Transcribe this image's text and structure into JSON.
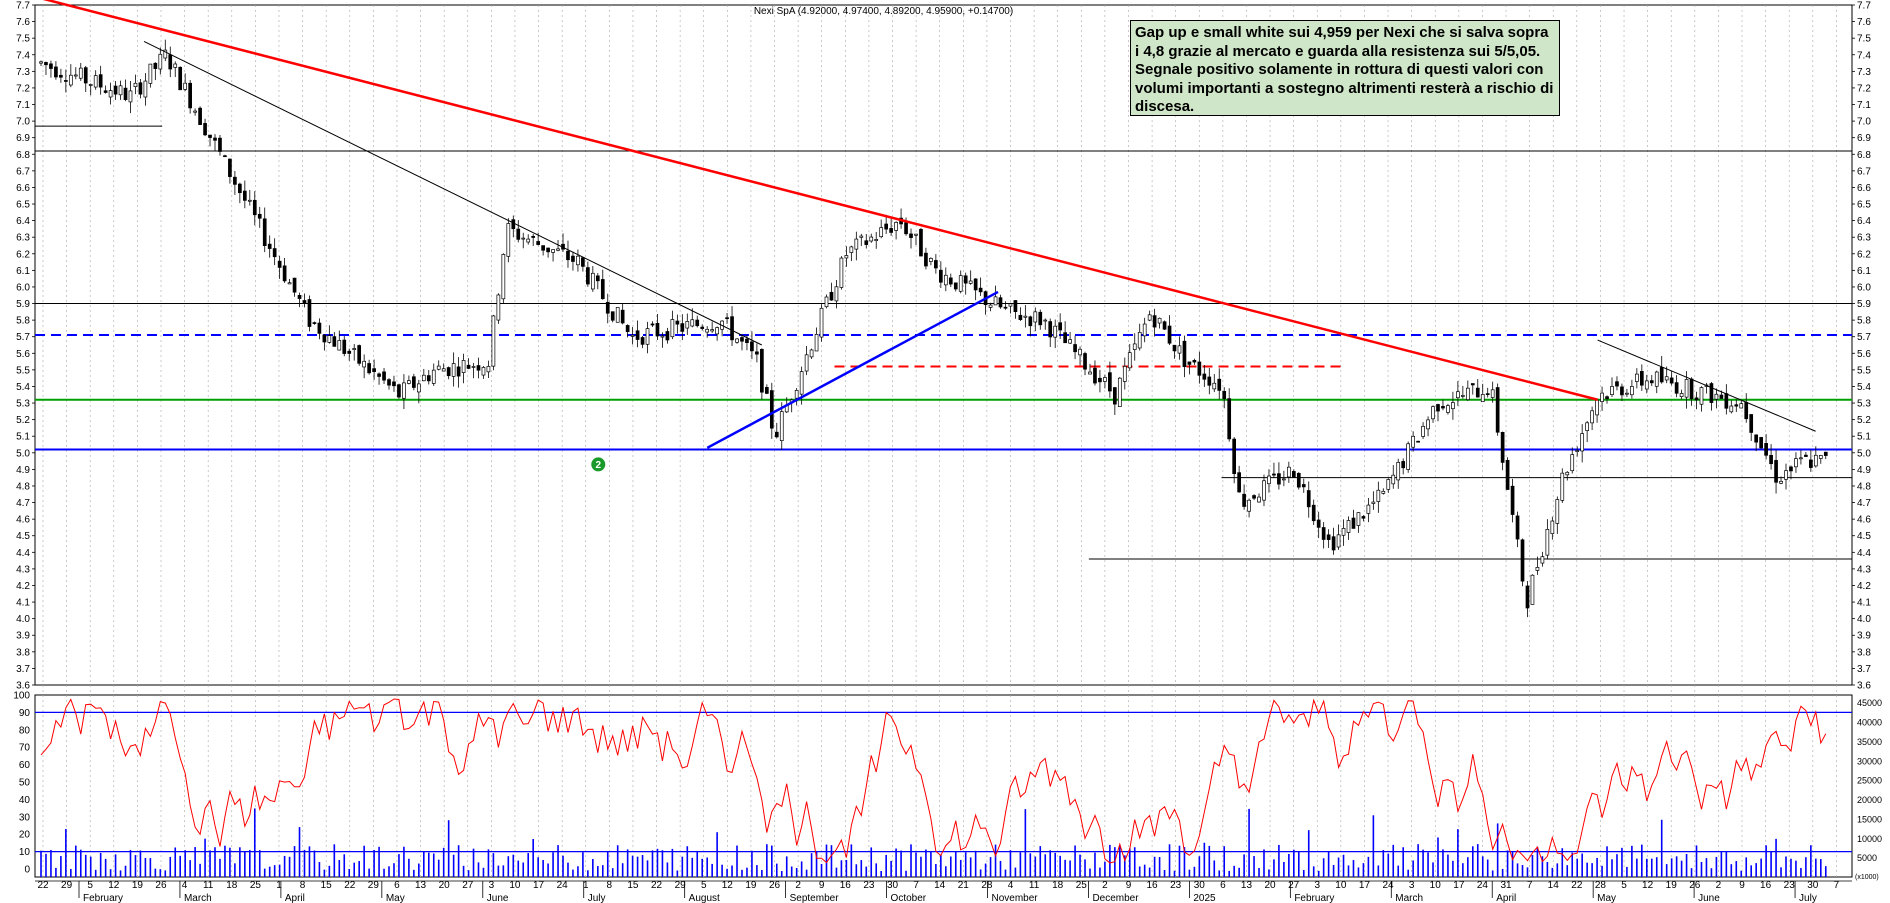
{
  "chart_data": {
    "type": "candlestick",
    "title": "Nexi SpA (4.92000, 4.97400, 4.89200, 4.95900, +0.14700)",
    "annotation": "Gap up e small white sui 4,959 per Nexi che si salva sopra i 4,8 grazie al mercato e guarda alla resistenza sui 5/5,05. Segnale positivo solamente in rottura di questi valori con volumi importanti a sostegno altrimenti resterà a rischio di discesa.",
    "price_axis": {
      "min": 3.6,
      "max": 7.7,
      "step": 0.1,
      "labels": [
        "7.7",
        "7.6",
        "7.5",
        "7.4",
        "7.3",
        "7.2",
        "7.1",
        "7.0",
        "6.9",
        "6.8",
        "6.7",
        "6.6",
        "6.5",
        "6.4",
        "6.3",
        "6.2",
        "6.1",
        "6.0",
        "5.9",
        "5.8",
        "5.7",
        "5.6",
        "5.5",
        "5.4",
        "5.3",
        "5.2",
        "5.1",
        "5.0",
        "4.9",
        "4.8",
        "4.7",
        "4.6",
        "4.5",
        "4.4",
        "4.3",
        "4.2",
        "4.1",
        "4.0",
        "3.9",
        "3.8",
        "3.7",
        "3.6"
      ]
    },
    "oscillator_axis": {
      "min": 0,
      "max": 100,
      "labels": [
        "100",
        "90",
        "80",
        "70",
        "60",
        "50",
        "40",
        "30",
        "20",
        "10",
        "0"
      ]
    },
    "volume_axis": {
      "min": 0,
      "max": 47000,
      "labels": [
        "45000",
        "40000",
        "35000",
        "30000",
        "25000",
        "20000",
        "15000",
        "10000",
        "5000"
      ],
      "unit_label": "(x1000)"
    },
    "date_labels": [
      "22",
      "29",
      "5",
      "12",
      "19",
      "26",
      "4",
      "11",
      "18",
      "25",
      "1",
      "8",
      "15",
      "22",
      "29",
      "6",
      "13",
      "20",
      "27",
      "3",
      "10",
      "17",
      "24",
      "1",
      "8",
      "15",
      "22",
      "29",
      "5",
      "12",
      "19",
      "26",
      "2",
      "9",
      "16",
      "23",
      "30",
      "7",
      "14",
      "21",
      "28",
      "4",
      "11",
      "18",
      "25",
      "2",
      "9",
      "16",
      "23",
      "30",
      "6",
      "13",
      "20",
      "27",
      "3",
      "10",
      "17",
      "24",
      "3",
      "10",
      "17",
      "24",
      "31",
      "7",
      "14",
      "22",
      "28",
      "5",
      "12",
      "19",
      "26",
      "2",
      "9",
      "16",
      "23",
      "30",
      "7"
    ],
    "month_labels": [
      "February",
      "March",
      "April",
      "May",
      "June",
      "July",
      "August",
      "September",
      "October",
      "November",
      "December",
      "2025",
      "February",
      "March",
      "April",
      "May",
      "June",
      "July"
    ],
    "horizontal_levels": [
      {
        "value": 6.82,
        "color": "#000000",
        "style": "solid"
      },
      {
        "value": 5.9,
        "color": "#000000",
        "style": "solid"
      },
      {
        "value": 5.71,
        "color": "#0000ff",
        "style": "dashed"
      },
      {
        "value": 5.52,
        "color": "#ff0000",
        "style": "dashed"
      },
      {
        "value": 5.32,
        "color": "#00a000",
        "style": "solid"
      },
      {
        "value": 5.02,
        "color": "#0000ff",
        "style": "solid"
      },
      {
        "value": 4.85,
        "color": "#000000",
        "style": "solid"
      },
      {
        "value": 4.36,
        "color": "#000000",
        "style": "solid"
      },
      {
        "value": 6.97,
        "color": "#000000",
        "style": "solid"
      }
    ],
    "trendlines": [
      {
        "from": [
          0,
          7.75
        ],
        "to": [
          0.86,
          5.32
        ],
        "color": "#ff0000"
      },
      {
        "from": [
          0.37,
          5.03
        ],
        "to": [
          0.53,
          5.97
        ],
        "color": "#0000ff"
      },
      {
        "from": [
          0.06,
          7.48
        ],
        "to": [
          0.4,
          5.65
        ],
        "color": "#000000"
      },
      {
        "from": [
          0.86,
          5.68
        ],
        "to": [
          0.98,
          5.13
        ],
        "color": "#000000"
      }
    ],
    "oscillator_levels": [
      90,
      10
    ],
    "markers": [
      {
        "label": "2"
      }
    ],
    "colors": {
      "up": "#ffffff",
      "down": "#000000",
      "oscillator": "#ff0000",
      "volume": "#0000ff",
      "grid": "#a8a8a8"
    }
  }
}
